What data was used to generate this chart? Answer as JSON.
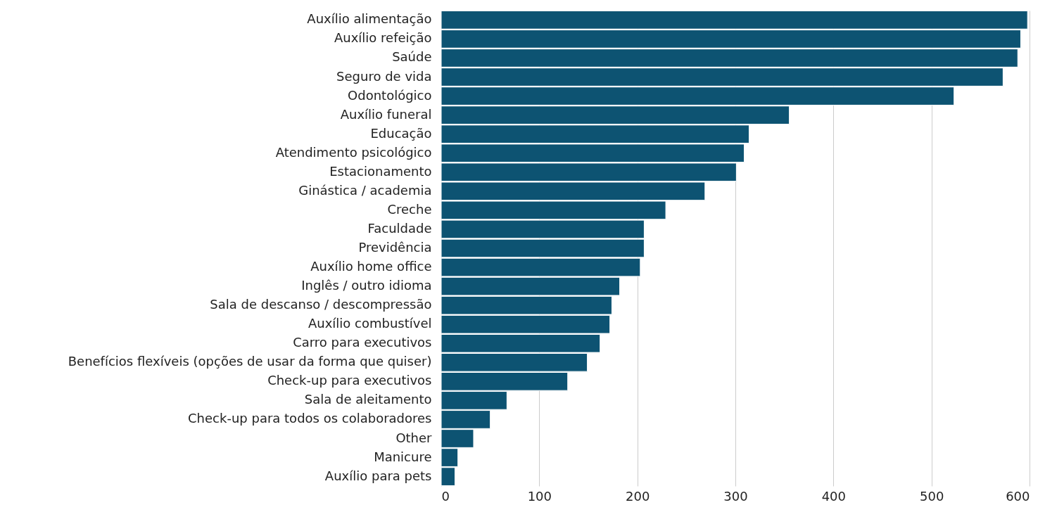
{
  "chart_data": {
    "type": "bar",
    "orientation": "horizontal",
    "categories": [
      "Auxílio alimentação",
      "Auxílio refeição",
      "Saúde",
      "Seguro de vida",
      "Odontológico",
      "Auxílio funeral",
      "Educação",
      "Atendimento psicológico",
      "Estacionamento",
      "Ginástica / academia",
      "Creche",
      "Faculdade",
      "Previdência",
      "Auxílio home office",
      "Inglês / outro idioma",
      "Sala de descanso / descompressão",
      "Auxílio combustível",
      "Carro para executivos",
      "Benefícios flexíveis (opções de usar da forma que quiser)",
      "Check-up para executivos",
      "Sala de aleitamento",
      "Check-up para todos os colaboradores",
      "Other",
      "Manicure",
      "Auxílio para pets"
    ],
    "values": [
      598,
      591,
      588,
      573,
      523,
      355,
      314,
      309,
      301,
      269,
      229,
      207,
      207,
      203,
      182,
      174,
      172,
      162,
      149,
      129,
      67,
      50,
      33,
      17,
      14
    ],
    "color": "#0d5372",
    "xlim": [
      0,
      600
    ],
    "xticks": [
      0,
      100,
      200,
      300,
      400,
      500,
      600
    ],
    "grid": "x"
  }
}
